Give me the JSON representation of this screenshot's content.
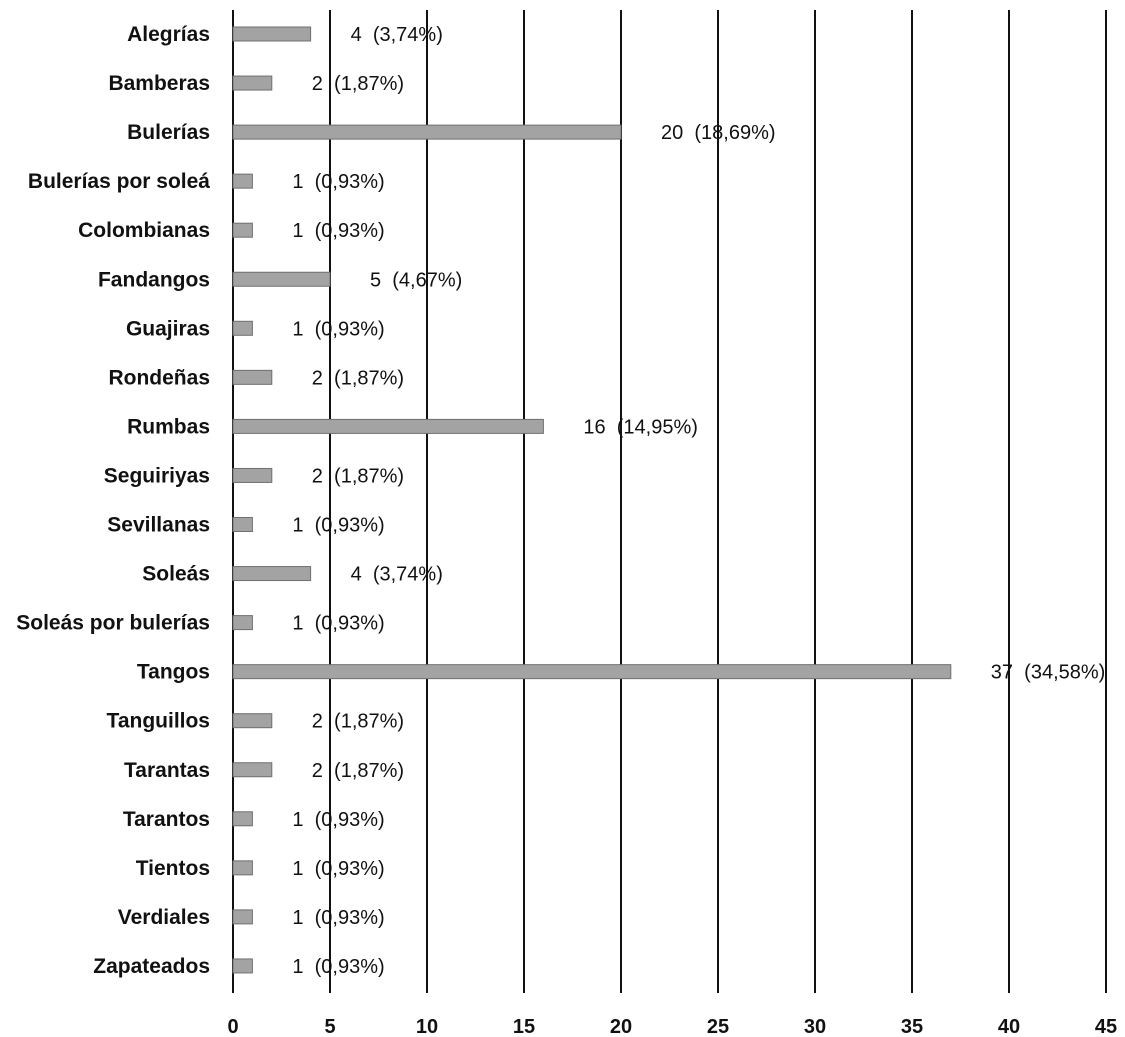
{
  "chart_data": {
    "type": "bar",
    "orientation": "horizontal",
    "categories": [
      "Alegrías",
      "Bamberas",
      "Bulerías",
      "Bulerías por soleá",
      "Colombianas",
      "Fandangos",
      "Guajiras",
      "Rondeñas",
      "Rumbas",
      "Seguiriyas",
      "Sevillanas",
      "Soleás",
      "Soleás por bulerías",
      "Tangos",
      "Tanguillos",
      "Tarantas",
      "Tarantos",
      "Tientos",
      "Verdiales",
      "Zapateados"
    ],
    "values": [
      4,
      2,
      20,
      1,
      1,
      5,
      1,
      2,
      16,
      2,
      1,
      4,
      1,
      37,
      2,
      2,
      1,
      1,
      1,
      1
    ],
    "data_labels": [
      "4  (3,74%)",
      "2  (1,87%)",
      "20  (18,69%)",
      "1  (0,93%)",
      "1  (0,93%)",
      "5  (4,67%)",
      "1  (0,93%)",
      "2  (1,87%)",
      "16  (14,95%)",
      "2  (1,87%)",
      "1  (0,93%)",
      "4  (3,74%)",
      "1  (0,93%)",
      "37  (34,58%)",
      "2  (1,87%)",
      "2  (1,87%)",
      "1  (0,93%)",
      "1  (0,93%)",
      "1  (0,93%)",
      "1  (0,93%)"
    ],
    "xlim": [
      0,
      45
    ],
    "xticks": [
      "0",
      "5",
      "10",
      "15",
      "20",
      "25",
      "30",
      "35",
      "40",
      "45"
    ],
    "title": "",
    "xlabel": "",
    "ylabel": "",
    "grid": "vertical",
    "colors": {
      "bar": "#a3a3a3",
      "bar_edge": "#6f6f6f",
      "grid": "#111111"
    }
  }
}
